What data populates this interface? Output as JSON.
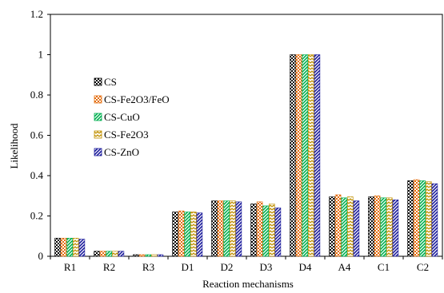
{
  "chart_data": {
    "type": "bar",
    "title": "",
    "xlabel": "Reaction mechanisms",
    "ylabel": "Likelihood",
    "ylim": [
      0,
      1.2
    ],
    "yticks": [
      "0",
      "0.2",
      "0.4",
      "0.6",
      "0.8",
      "1",
      "1.2"
    ],
    "ytick_values": [
      0,
      0.2,
      0.4,
      0.6,
      0.8,
      1.0,
      1.2
    ],
    "grid": false,
    "legend_position": "left",
    "categories": [
      "R1",
      "R2",
      "R3",
      "D1",
      "D2",
      "D3",
      "D4",
      "A4",
      "C1",
      "C2"
    ],
    "series": [
      {
        "name": "CS",
        "color": "#000000",
        "pattern": "checker",
        "values": [
          0.09,
          0.025,
          0.008,
          0.22,
          0.275,
          0.26,
          1.0,
          0.295,
          0.295,
          0.375
        ]
      },
      {
        "name": "CS-Fe2O3/FeO",
        "color": "#e46c0a",
        "pattern": "checker",
        "values": [
          0.09,
          0.025,
          0.008,
          0.225,
          0.275,
          0.27,
          1.0,
          0.305,
          0.3,
          0.38
        ]
      },
      {
        "name": "CS-CuO",
        "color": "#00b050",
        "pattern": "diagonal",
        "values": [
          0.09,
          0.025,
          0.008,
          0.22,
          0.275,
          0.25,
          1.0,
          0.29,
          0.29,
          0.375
        ]
      },
      {
        "name": "CS-Fe2O3",
        "color": "#c09000",
        "pattern": "zigzag",
        "values": [
          0.09,
          0.025,
          0.008,
          0.22,
          0.275,
          0.26,
          1.0,
          0.295,
          0.29,
          0.37
        ]
      },
      {
        "name": "CS-ZnO",
        "color": "#1c1c9c",
        "pattern": "diagonal",
        "values": [
          0.085,
          0.025,
          0.008,
          0.215,
          0.27,
          0.24,
          1.0,
          0.275,
          0.28,
          0.36
        ]
      }
    ]
  }
}
